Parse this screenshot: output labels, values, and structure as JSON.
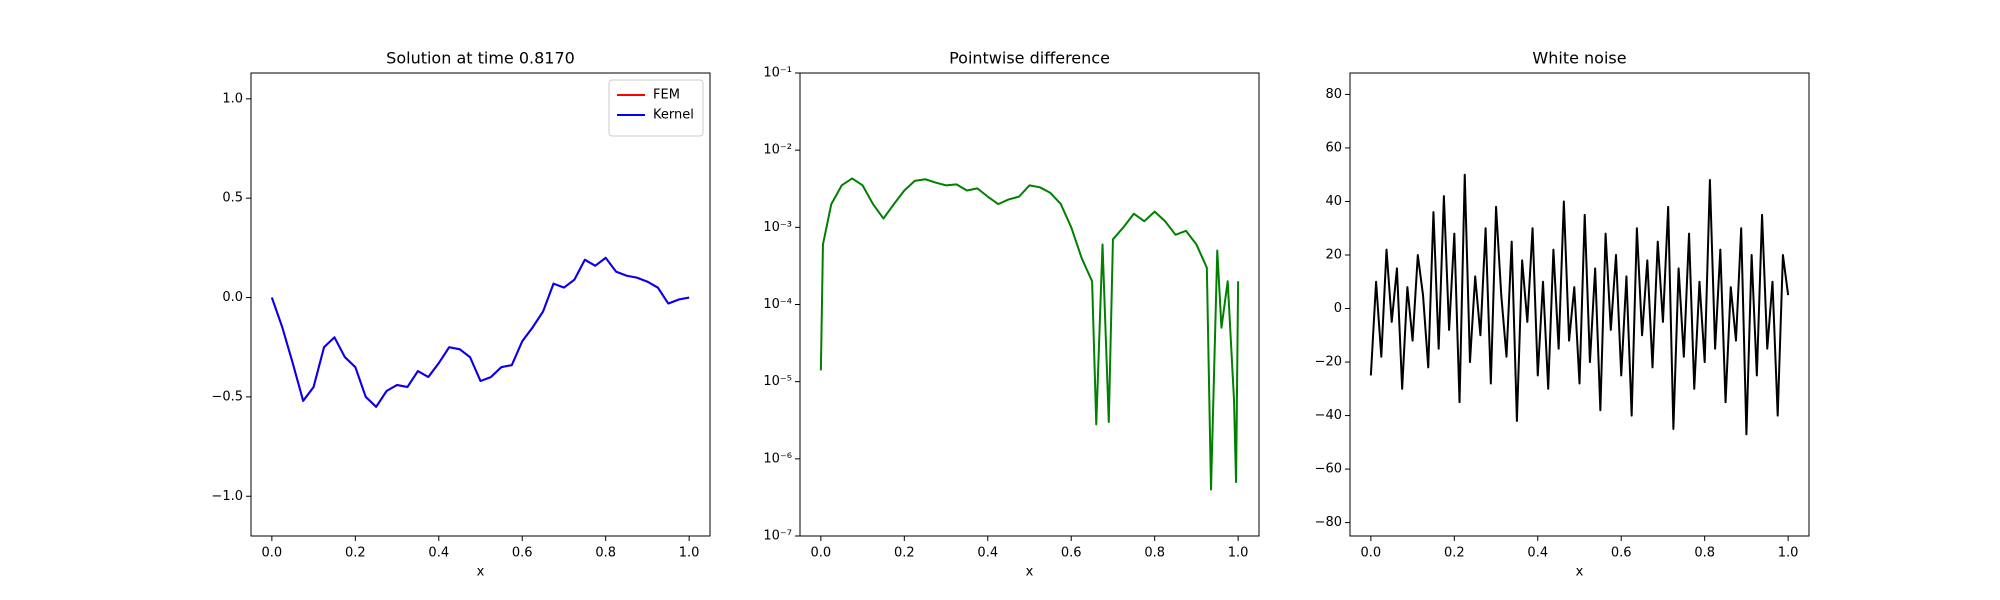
{
  "chart_data": [
    {
      "type": "line",
      "title": "Solution at time 0.8170",
      "xlabel": "x",
      "x": [
        0,
        0.025,
        0.05,
        0.075,
        0.1,
        0.125,
        0.15,
        0.175,
        0.2,
        0.225,
        0.25,
        0.275,
        0.3,
        0.325,
        0.35,
        0.375,
        0.4,
        0.425,
        0.45,
        0.475,
        0.5,
        0.525,
        0.55,
        0.575,
        0.6,
        0.625,
        0.65,
        0.675,
        0.7,
        0.725,
        0.75,
        0.775,
        0.8,
        0.825,
        0.85,
        0.875,
        0.9,
        0.925,
        0.95,
        0.975,
        1.0
      ],
      "series": [
        {
          "name": "FEM",
          "color": "#ff0000",
          "values": [
            0,
            -0.15,
            -0.33,
            -0.52,
            -0.45,
            -0.25,
            -0.2,
            -0.3,
            -0.35,
            -0.5,
            -0.55,
            -0.47,
            -0.44,
            -0.45,
            -0.37,
            -0.4,
            -0.33,
            -0.25,
            -0.26,
            -0.3,
            -0.42,
            -0.4,
            -0.35,
            -0.34,
            -0.22,
            -0.15,
            -0.07,
            0.07,
            0.05,
            0.09,
            0.19,
            0.16,
            0.2,
            0.13,
            0.11,
            0.1,
            0.08,
            0.05,
            -0.03,
            -0.01,
            0
          ]
        },
        {
          "name": "Kernel",
          "color": "#0000ff",
          "values": [
            0,
            -0.15,
            -0.33,
            -0.52,
            -0.45,
            -0.25,
            -0.2,
            -0.3,
            -0.35,
            -0.5,
            -0.55,
            -0.47,
            -0.44,
            -0.45,
            -0.37,
            -0.4,
            -0.33,
            -0.25,
            -0.26,
            -0.3,
            -0.42,
            -0.4,
            -0.35,
            -0.34,
            -0.22,
            -0.15,
            -0.07,
            0.07,
            0.05,
            0.09,
            0.19,
            0.16,
            0.2,
            0.13,
            0.11,
            0.1,
            0.08,
            0.05,
            -0.03,
            -0.01,
            0
          ]
        }
      ],
      "xlim": [
        -0.05,
        1.05
      ],
      "xticks": [
        {
          "value": 0,
          "label": "0.0"
        },
        {
          "value": 0.2,
          "label": "0.2"
        },
        {
          "value": 0.4,
          "label": "0.4"
        },
        {
          "value": 0.6,
          "label": "0.6"
        },
        {
          "value": 0.8,
          "label": "0.8"
        },
        {
          "value": 1,
          "label": "1.0"
        }
      ],
      "ylim": [
        -1.2,
        1.13
      ],
      "yticks": [
        {
          "value": -1,
          "label": "−1.0"
        },
        {
          "value": -0.5,
          "label": "−0.5"
        },
        {
          "value": 0,
          "label": "0.0"
        },
        {
          "value": 0.5,
          "label": "0.5"
        },
        {
          "value": 1,
          "label": "1.0"
        }
      ],
      "legend": "upper right"
    },
    {
      "type": "line",
      "title": "Pointwise difference",
      "xlabel": "x",
      "log_y": true,
      "color": "#008000",
      "x": [
        0,
        0.005,
        0.025,
        0.05,
        0.075,
        0.1,
        0.125,
        0.15,
        0.175,
        0.2,
        0.225,
        0.25,
        0.275,
        0.3,
        0.325,
        0.35,
        0.375,
        0.4,
        0.425,
        0.45,
        0.475,
        0.5,
        0.525,
        0.55,
        0.575,
        0.6,
        0.625,
        0.65,
        0.66,
        0.675,
        0.69,
        0.7,
        0.725,
        0.75,
        0.775,
        0.8,
        0.825,
        0.85,
        0.875,
        0.9,
        0.925,
        0.935,
        0.95,
        0.96,
        0.975,
        0.99,
        0.995,
        1.0
      ],
      "values": [
        1.4e-05,
        0.0006,
        0.002,
        0.0035,
        0.0043,
        0.0035,
        0.002,
        0.0013,
        0.002,
        0.003,
        0.004,
        0.0042,
        0.0038,
        0.0035,
        0.0036,
        0.003,
        0.0032,
        0.0025,
        0.002,
        0.0023,
        0.0025,
        0.0035,
        0.0033,
        0.0028,
        0.002,
        0.001,
        0.0004,
        0.0002,
        2.8e-06,
        0.0006,
        3e-06,
        0.0007,
        0.001,
        0.0015,
        0.0012,
        0.0016,
        0.0012,
        0.0008,
        0.0009,
        0.0006,
        0.0003,
        4e-07,
        0.0005,
        5e-05,
        0.0002,
        6e-06,
        5e-07,
        0.0002
      ],
      "xlim": [
        -0.05,
        1.05
      ],
      "xticks": [
        {
          "value": 0,
          "label": "0.0"
        },
        {
          "value": 0.2,
          "label": "0.2"
        },
        {
          "value": 0.4,
          "label": "0.4"
        },
        {
          "value": 0.6,
          "label": "0.6"
        },
        {
          "value": 0.8,
          "label": "0.8"
        },
        {
          "value": 1,
          "label": "1.0"
        }
      ],
      "ylim": [
        1e-07,
        0.1
      ],
      "yticks": [
        {
          "value": 1e-07,
          "label": "10⁻⁷"
        },
        {
          "value": 1e-06,
          "label": "10⁻⁶"
        },
        {
          "value": 1e-05,
          "label": "10⁻⁵"
        },
        {
          "value": 0.0001,
          "label": "10⁻⁴"
        },
        {
          "value": 0.001,
          "label": "10⁻³"
        },
        {
          "value": 0.01,
          "label": "10⁻²"
        },
        {
          "value": 0.1,
          "label": "10⁻¹"
        }
      ]
    },
    {
      "type": "line",
      "title": "White noise",
      "xlabel": "x",
      "color": "#000000",
      "x": [
        0,
        0.0125,
        0.025,
        0.0375,
        0.05,
        0.0625,
        0.075,
        0.0875,
        0.1,
        0.1125,
        0.125,
        0.1375,
        0.15,
        0.1625,
        0.175,
        0.1875,
        0.2,
        0.2125,
        0.225,
        0.2375,
        0.25,
        0.2625,
        0.275,
        0.2875,
        0.3,
        0.3125,
        0.325,
        0.3375,
        0.35,
        0.3625,
        0.375,
        0.3875,
        0.4,
        0.4125,
        0.425,
        0.4375,
        0.45,
        0.4625,
        0.475,
        0.4875,
        0.5,
        0.5125,
        0.525,
        0.5375,
        0.55,
        0.5625,
        0.575,
        0.5875,
        0.6,
        0.6125,
        0.625,
        0.6375,
        0.65,
        0.6625,
        0.675,
        0.6875,
        0.7,
        0.7125,
        0.725,
        0.7375,
        0.75,
        0.7625,
        0.775,
        0.7875,
        0.8,
        0.8125,
        0.825,
        0.8375,
        0.85,
        0.8625,
        0.875,
        0.8875,
        0.9,
        0.9125,
        0.925,
        0.9375,
        0.95,
        0.9625,
        0.975,
        0.9875,
        1.0
      ],
      "values": [
        -25,
        10,
        -18,
        22,
        -5,
        15,
        -30,
        8,
        -12,
        20,
        5,
        -22,
        36,
        -15,
        42,
        -8,
        28,
        -35,
        50,
        -20,
        12,
        -10,
        30,
        -28,
        38,
        5,
        -18,
        25,
        -42,
        18,
        -5,
        30,
        -25,
        10,
        -30,
        22,
        -15,
        40,
        -12,
        8,
        -28,
        35,
        -20,
        15,
        -38,
        28,
        -8,
        20,
        -25,
        12,
        -40,
        30,
        -10,
        18,
        -22,
        25,
        -5,
        38,
        -45,
        15,
        -18,
        28,
        -30,
        10,
        -20,
        48,
        -15,
        22,
        -35,
        8,
        -12,
        30,
        -47,
        20,
        -25,
        35,
        -15,
        10,
        -40,
        20,
        5
      ],
      "xlim": [
        -0.05,
        1.05
      ],
      "xticks": [
        {
          "value": 0,
          "label": "0.0"
        },
        {
          "value": 0.2,
          "label": "0.2"
        },
        {
          "value": 0.4,
          "label": "0.4"
        },
        {
          "value": 0.6,
          "label": "0.6"
        },
        {
          "value": 0.8,
          "label": "0.8"
        },
        {
          "value": 1,
          "label": "1.0"
        }
      ],
      "ylim": [
        -85,
        88
      ],
      "yticks": [
        {
          "value": -80,
          "label": "−80"
        },
        {
          "value": -60,
          "label": "−60"
        },
        {
          "value": -40,
          "label": "−40"
        },
        {
          "value": -20,
          "label": "−20"
        },
        0,
        20,
        40,
        60,
        80
      ]
    }
  ]
}
